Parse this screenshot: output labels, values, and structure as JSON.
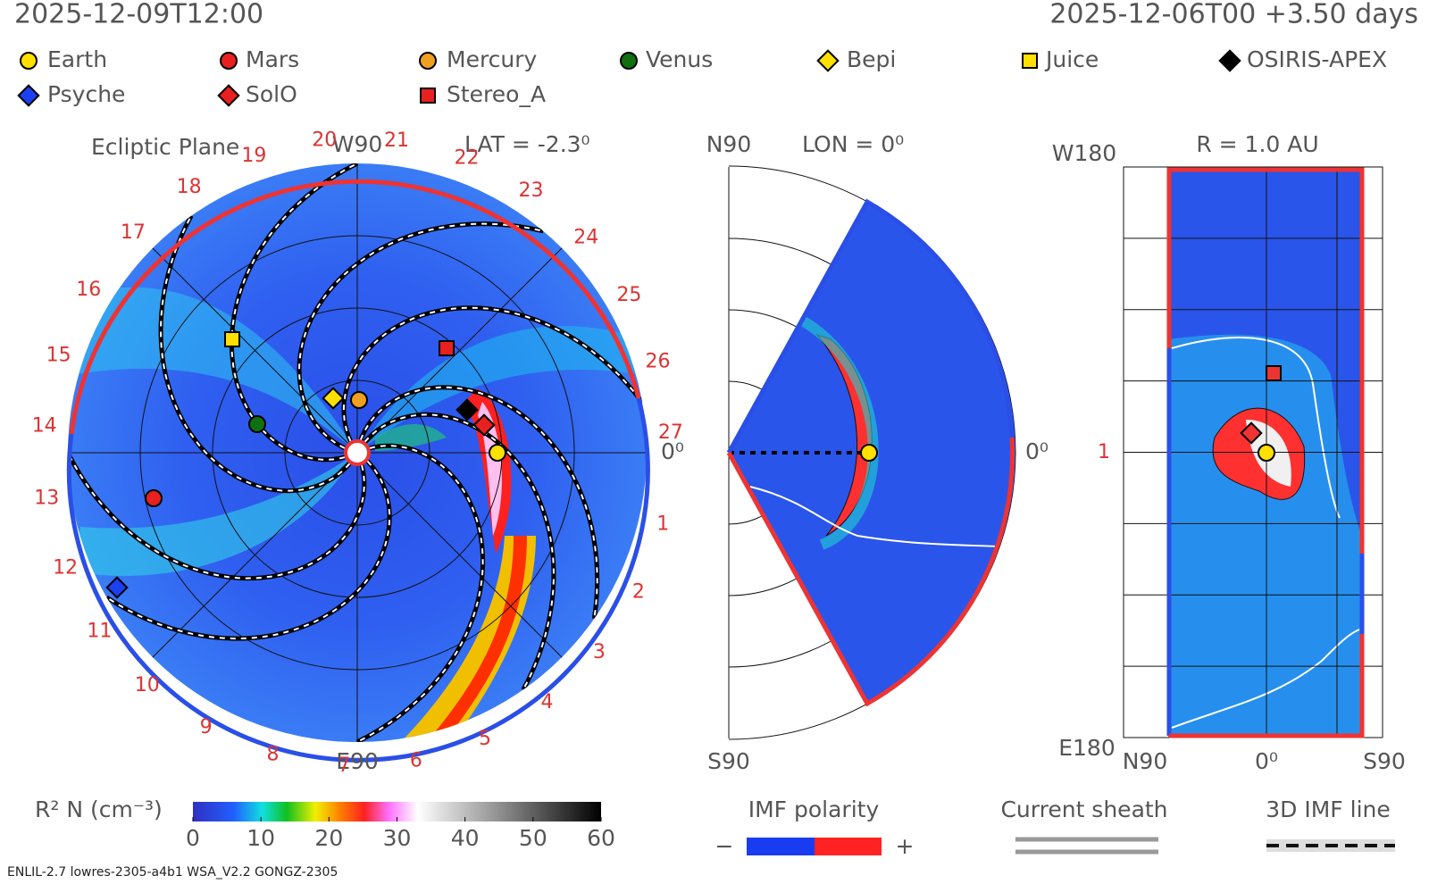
{
  "header": {
    "datetime": "2025-12-09T12:00",
    "run": "2025-12-06T00 +3.50 days"
  },
  "legend": [
    "Earth",
    "Mars",
    "Mercury",
    "Venus",
    "Bepi",
    "Juice",
    "OSIRIS-APEX",
    "Psyche",
    "SolO",
    "Stereo_A"
  ],
  "ecliptic": {
    "title": "Ecliptic Plane",
    "top": "W90",
    "bottom": "E90",
    "right": "0⁰",
    "latitude": "LAT = -2.3⁰",
    "clock": [
      1,
      2,
      3,
      4,
      5,
      6,
      7,
      8,
      9,
      10,
      11,
      12,
      13,
      14,
      15,
      16,
      17,
      18,
      19,
      20,
      21,
      22,
      23,
      24,
      25,
      26,
      27
    ]
  },
  "meridional": {
    "top": "N90",
    "bottom": "S90",
    "right": "0⁰",
    "longitude": "LON = 0⁰"
  },
  "sphere": {
    "top": "W180",
    "bottom": "E180",
    "radius": "R = 1.0 AU",
    "left_axis": "N90",
    "center_axis": "0⁰",
    "right_axis": "S90",
    "marker": "1"
  },
  "colorbar": {
    "label": "R² N (cm⁻³)",
    "range": [
      0,
      60
    ],
    "ticks": [
      0,
      10,
      20,
      30,
      40,
      50,
      60
    ]
  },
  "keys": {
    "imf": "IMF polarity",
    "minus": "−",
    "plus": "+",
    "sheath": "Current sheath",
    "line": "3D IMF line"
  },
  "footer": "ENLIL-2.7 lowres-2305-a4b1 WSA_V2.2 GONGZ-2305"
}
